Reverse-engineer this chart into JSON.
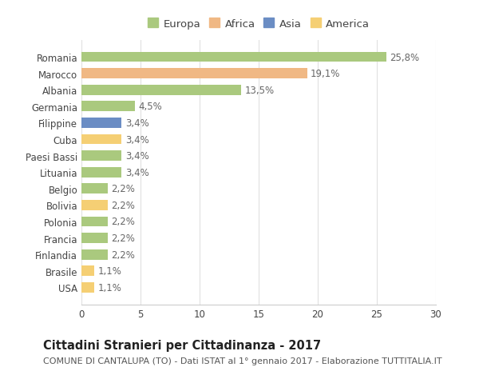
{
  "countries": [
    "Romania",
    "Marocco",
    "Albania",
    "Germania",
    "Filippine",
    "Cuba",
    "Paesi Bassi",
    "Lituania",
    "Belgio",
    "Bolivia",
    "Polonia",
    "Francia",
    "Finlandia",
    "Brasile",
    "USA"
  ],
  "values": [
    25.8,
    19.1,
    13.5,
    4.5,
    3.4,
    3.4,
    3.4,
    3.4,
    2.2,
    2.2,
    2.2,
    2.2,
    2.2,
    1.1,
    1.1
  ],
  "labels": [
    "25,8%",
    "19,1%",
    "13,5%",
    "4,5%",
    "3,4%",
    "3,4%",
    "3,4%",
    "3,4%",
    "2,2%",
    "2,2%",
    "2,2%",
    "2,2%",
    "2,2%",
    "1,1%",
    "1,1%"
  ],
  "colors": [
    "#aac97e",
    "#f0b884",
    "#aac97e",
    "#aac97e",
    "#6b8dc4",
    "#f5cf74",
    "#aac97e",
    "#aac97e",
    "#aac97e",
    "#f5cf74",
    "#aac97e",
    "#aac97e",
    "#aac97e",
    "#f5cf74",
    "#f5cf74"
  ],
  "continent": [
    "Europa",
    "Africa",
    "Europa",
    "Europa",
    "Asia",
    "America",
    "Europa",
    "Europa",
    "Europa",
    "America",
    "Europa",
    "Europa",
    "Europa",
    "America",
    "America"
  ],
  "legend_labels": [
    "Europa",
    "Africa",
    "Asia",
    "America"
  ],
  "legend_colors": [
    "#aac97e",
    "#f0b884",
    "#6b8dc4",
    "#f5cf74"
  ],
  "title": "Cittadini Stranieri per Cittadinanza - 2017",
  "subtitle": "COMUNE DI CANTALUPA (TO) - Dati ISTAT al 1° gennaio 2017 - Elaborazione TUTTITALIA.IT",
  "xlim": [
    0,
    30
  ],
  "xticks": [
    0,
    5,
    10,
    15,
    20,
    25,
    30
  ],
  "background_color": "#ffffff",
  "grid_color": "#e0e0e0",
  "bar_height": 0.62,
  "title_fontsize": 10.5,
  "subtitle_fontsize": 8,
  "label_fontsize": 8.5,
  "tick_fontsize": 8.5,
  "legend_fontsize": 9.5
}
